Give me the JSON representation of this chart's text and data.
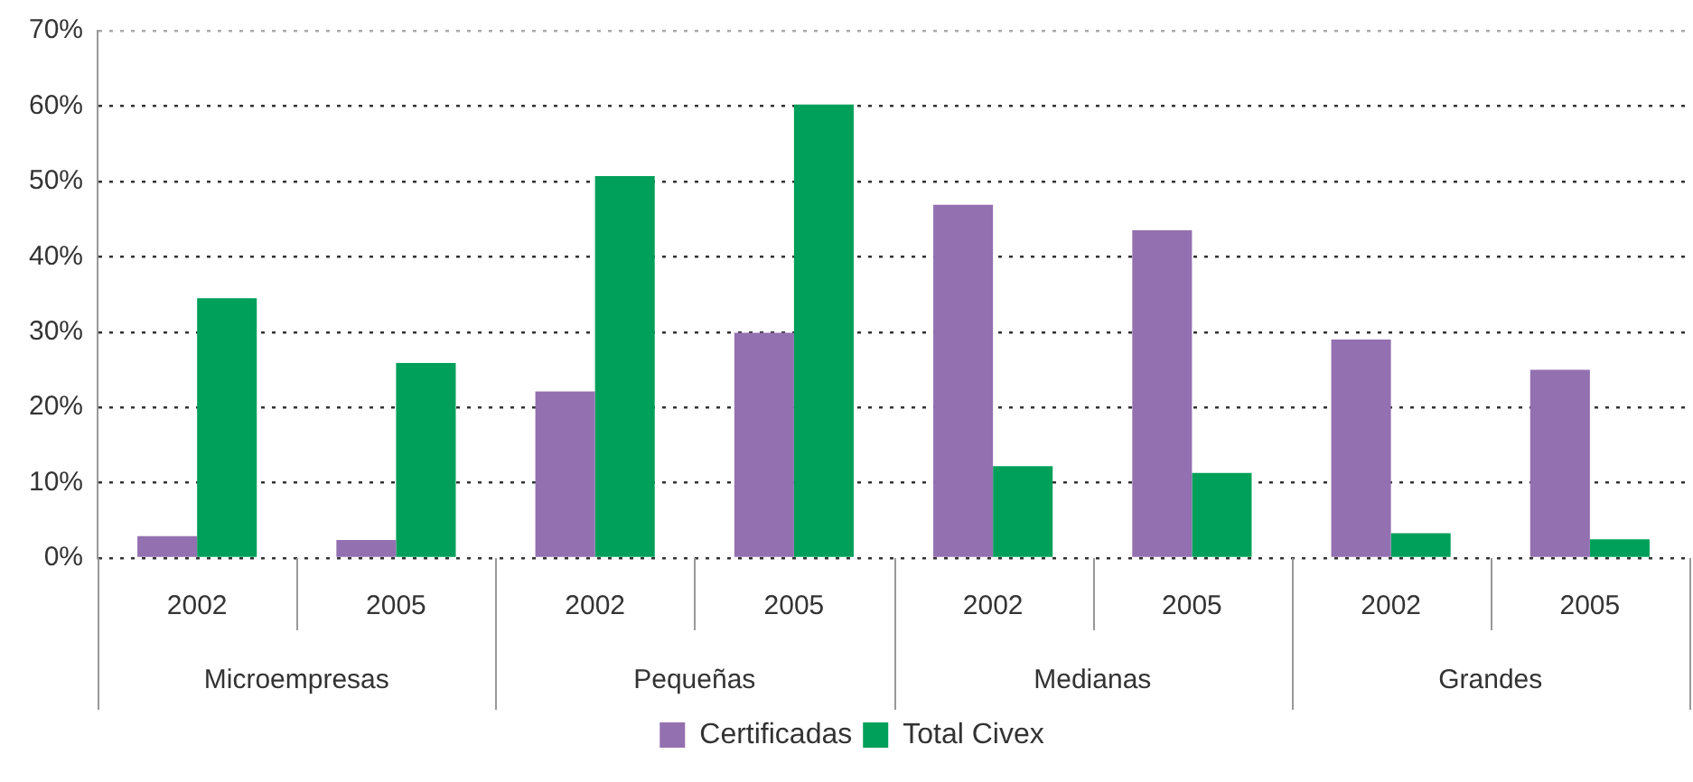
{
  "chart_data": {
    "type": "bar",
    "categories": [
      "2002",
      "2005",
      "2002",
      "2005",
      "2002",
      "2005",
      "2002",
      "2005"
    ],
    "annotations": [
      "Microempresas",
      "Pequeñas",
      "Medianas",
      "Grandes"
    ],
    "series": [
      {
        "name": "Certificadas",
        "color": "#9370b0",
        "values": [
          2.9,
          2.4,
          22.1,
          29.9,
          46.9,
          43.5,
          29.0,
          25.0
        ]
      },
      {
        "name": "Total Civex",
        "color": "#00a05a",
        "values": [
          34.5,
          25.9,
          50.7,
          60.2,
          12.2,
          11.3,
          3.3,
          2.5
        ]
      }
    ],
    "ylim": [
      0,
      70
    ],
    "yticks": [
      {
        "value": 0,
        "label": "0%"
      },
      {
        "value": 10,
        "label": "10%"
      },
      {
        "value": 20,
        "label": "20%"
      },
      {
        "value": 30,
        "label": "30%"
      },
      {
        "value": 40,
        "label": "40%"
      },
      {
        "value": 50,
        "label": "50%"
      },
      {
        "value": 60,
        "label": "60%"
      },
      {
        "value": 70,
        "label": "70%"
      }
    ],
    "grid": "y",
    "legend": "bottom"
  }
}
